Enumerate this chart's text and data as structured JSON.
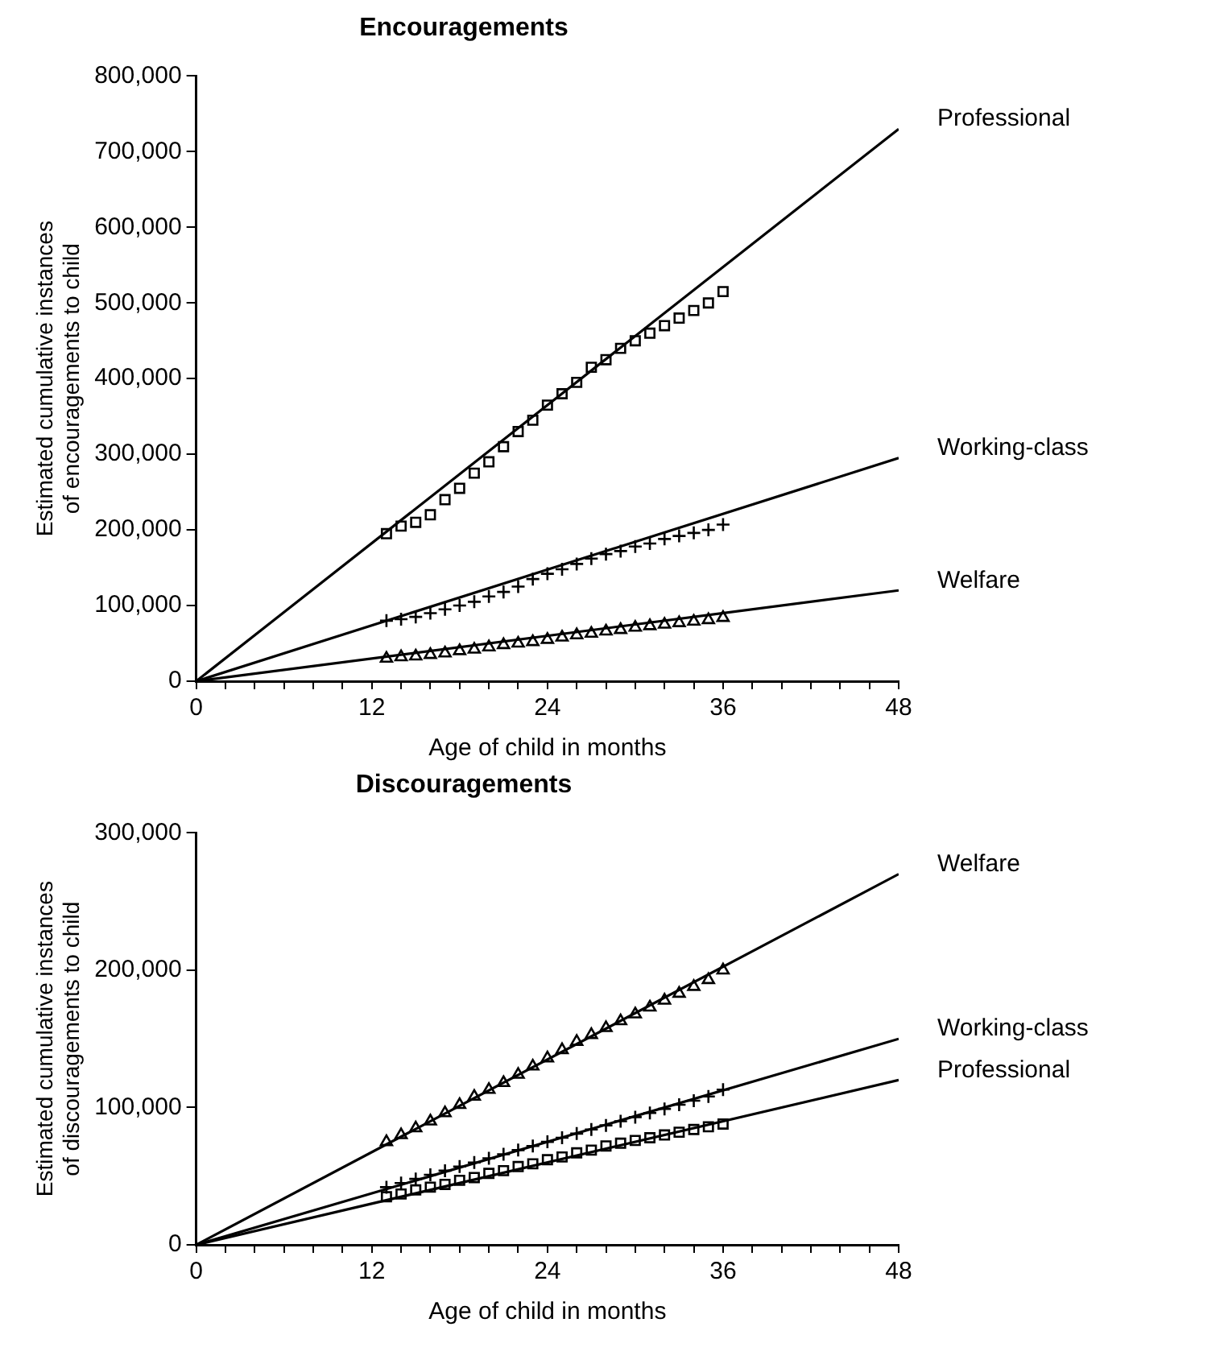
{
  "chart_data": [
    {
      "type": "scatter",
      "title": "Encouragements",
      "xlabel": "Age of child in months",
      "ylabel": "Estimated cumulative instances of encouragements to child",
      "xlim": [
        0,
        48
      ],
      "ylim": [
        0,
        800000
      ],
      "xticks": [
        0,
        {
          "value": 2,
          "label": null
        },
        {
          "value": 4,
          "label": null
        },
        {
          "value": 6,
          "label": null
        },
        {
          "value": 8,
          "label": null
        },
        {
          "value": 10,
          "label": null
        },
        12,
        {
          "value": 14,
          "label": null
        },
        {
          "value": 16,
          "label": null
        },
        {
          "value": 18,
          "label": null
        },
        {
          "value": 20,
          "label": null
        },
        {
          "value": 22,
          "label": null
        },
        24,
        {
          "value": 26,
          "label": null
        },
        {
          "value": 28,
          "label": null
        },
        {
          "value": 30,
          "label": null
        },
        {
          "value": 32,
          "label": null
        },
        {
          "value": 34,
          "label": null
        },
        36,
        {
          "value": 38,
          "label": null
        },
        {
          "value": 40,
          "label": null
        },
        {
          "value": 42,
          "label": null
        },
        {
          "value": 44,
          "label": null
        },
        {
          "value": 46,
          "label": null
        },
        48
      ],
      "yticks": [
        0,
        {
          "value": 100000,
          "label": "100,000"
        },
        {
          "value": 200000,
          "label": "200,000"
        },
        {
          "value": 300000,
          "label": "300,000"
        },
        {
          "value": 400000,
          "label": "400,000"
        },
        {
          "value": 500000,
          "label": "500,000"
        },
        {
          "value": 600000,
          "label": "600,000"
        },
        {
          "value": 700000,
          "label": "700,000"
        },
        {
          "value": 800000,
          "label": "800,000"
        }
      ],
      "grid": false,
      "legend": false,
      "series": [
        {
          "type": "line",
          "name": "Professional",
          "color": "#000000",
          "marker": "none",
          "x": [
            0,
            48
          ],
          "values": [
            0,
            730000
          ]
        },
        {
          "type": "line",
          "name": "Working-class",
          "color": "#000000",
          "marker": "none",
          "x": [
            0,
            48
          ],
          "values": [
            0,
            295000
          ]
        },
        {
          "type": "line",
          "name": "Welfare",
          "color": "#000000",
          "marker": "none",
          "x": [
            0,
            48
          ],
          "values": [
            0,
            120000
          ]
        },
        {
          "color": "#000000",
          "marker": "square",
          "x": [
            13,
            14,
            15,
            16,
            17,
            18,
            19,
            20,
            21,
            22,
            23,
            24,
            25,
            26,
            27,
            28,
            29,
            30,
            31,
            32,
            33,
            34,
            35,
            36
          ],
          "values": [
            195000,
            205000,
            210000,
            220000,
            240000,
            255000,
            275000,
            290000,
            310000,
            330000,
            345000,
            365000,
            380000,
            395000,
            415000,
            425000,
            440000,
            450000,
            460000,
            470000,
            480000,
            490000,
            500000,
            515000
          ]
        },
        {
          "color": "#000000",
          "marker": "cross",
          "x": [
            13,
            14,
            15,
            16,
            17,
            18,
            19,
            20,
            21,
            22,
            23,
            24,
            25,
            26,
            27,
            28,
            29,
            30,
            31,
            32,
            33,
            34,
            35,
            36
          ],
          "values": [
            80000,
            82000,
            85000,
            90000,
            95000,
            100000,
            105000,
            112000,
            118000,
            125000,
            135000,
            142000,
            148000,
            155000,
            162000,
            168000,
            172000,
            178000,
            182000,
            188000,
            192000,
            196000,
            200000,
            207000
          ]
        },
        {
          "color": "#000000",
          "marker": "triangle",
          "x": [
            13,
            14,
            15,
            16,
            17,
            18,
            19,
            20,
            21,
            22,
            23,
            24,
            25,
            26,
            27,
            28,
            29,
            30,
            31,
            32,
            33,
            34,
            35,
            36
          ],
          "values": [
            30000,
            32000,
            33000,
            35000,
            37000,
            40000,
            42000,
            45000,
            48000,
            50000,
            52000,
            55000,
            58000,
            61000,
            63000,
            66000,
            68000,
            71000,
            73000,
            75000,
            77000,
            79000,
            81000,
            84000
          ]
        }
      ]
    },
    {
      "type": "scatter",
      "title": "Discouragements",
      "xlabel": "Age of child in months",
      "ylabel": "Estimated cumulative instances of discouragements to child",
      "xlim": [
        0,
        48
      ],
      "ylim": [
        0,
        300000
      ],
      "xticks": [
        0,
        {
          "value": 2,
          "label": null
        },
        {
          "value": 4,
          "label": null
        },
        {
          "value": 6,
          "label": null
        },
        {
          "value": 8,
          "label": null
        },
        {
          "value": 10,
          "label": null
        },
        12,
        {
          "value": 14,
          "label": null
        },
        {
          "value": 16,
          "label": null
        },
        {
          "value": 18,
          "label": null
        },
        {
          "value": 20,
          "label": null
        },
        {
          "value": 22,
          "label": null
        },
        24,
        {
          "value": 26,
          "label": null
        },
        {
          "value": 28,
          "label": null
        },
        {
          "value": 30,
          "label": null
        },
        {
          "value": 32,
          "label": null
        },
        {
          "value": 34,
          "label": null
        },
        36,
        {
          "value": 38,
          "label": null
        },
        {
          "value": 40,
          "label": null
        },
        {
          "value": 42,
          "label": null
        },
        {
          "value": 44,
          "label": null
        },
        {
          "value": 46,
          "label": null
        },
        48
      ],
      "yticks": [
        0,
        {
          "value": 100000,
          "label": "100,000"
        },
        {
          "value": 200000,
          "label": "200,000"
        },
        {
          "value": 300000,
          "label": "300,000"
        }
      ],
      "grid": false,
      "legend": false,
      "series": [
        {
          "type": "line",
          "name": "Welfare",
          "color": "#000000",
          "marker": "none",
          "x": [
            0,
            48
          ],
          "values": [
            0,
            270000
          ]
        },
        {
          "type": "line",
          "name": "Working-class",
          "color": "#000000",
          "marker": "none",
          "x": [
            0,
            48
          ],
          "values": [
            0,
            150000
          ]
        },
        {
          "type": "line",
          "name": "Professional",
          "color": "#000000",
          "marker": "none",
          "x": [
            0,
            48
          ],
          "values": [
            0,
            120000
          ]
        },
        {
          "color": "#000000",
          "marker": "triangle",
          "x": [
            13,
            14,
            15,
            16,
            17,
            18,
            19,
            20,
            21,
            22,
            23,
            24,
            25,
            26,
            27,
            28,
            29,
            30,
            31,
            32,
            33,
            34,
            35,
            36
          ],
          "values": [
            75000,
            80000,
            85000,
            90000,
            96000,
            102000,
            108000,
            113000,
            118000,
            124000,
            130000,
            136000,
            142000,
            148000,
            153000,
            158000,
            163000,
            168000,
            173000,
            178000,
            183000,
            188000,
            193000,
            200000
          ]
        },
        {
          "color": "#000000",
          "marker": "cross",
          "x": [
            13,
            14,
            15,
            16,
            17,
            18,
            19,
            20,
            21,
            22,
            23,
            24,
            25,
            26,
            27,
            28,
            29,
            30,
            31,
            32,
            33,
            34,
            35,
            36
          ],
          "values": [
            42000,
            45000,
            48000,
            51000,
            54000,
            57000,
            60000,
            63000,
            66000,
            69000,
            72000,
            75000,
            78000,
            81000,
            84000,
            87000,
            90000,
            93000,
            96000,
            99000,
            102000,
            105000,
            108000,
            113000
          ]
        },
        {
          "color": "#000000",
          "marker": "square",
          "x": [
            13,
            14,
            15,
            16,
            17,
            18,
            19,
            20,
            21,
            22,
            23,
            24,
            25,
            26,
            27,
            28,
            29,
            30,
            31,
            32,
            33,
            34,
            35,
            36
          ],
          "values": [
            35000,
            37000,
            40000,
            42000,
            44000,
            47000,
            49000,
            52000,
            54000,
            57000,
            59000,
            62000,
            64000,
            67000,
            69000,
            72000,
            74000,
            76000,
            78000,
            80000,
            82000,
            84000,
            86000,
            88000
          ]
        }
      ]
    }
  ]
}
